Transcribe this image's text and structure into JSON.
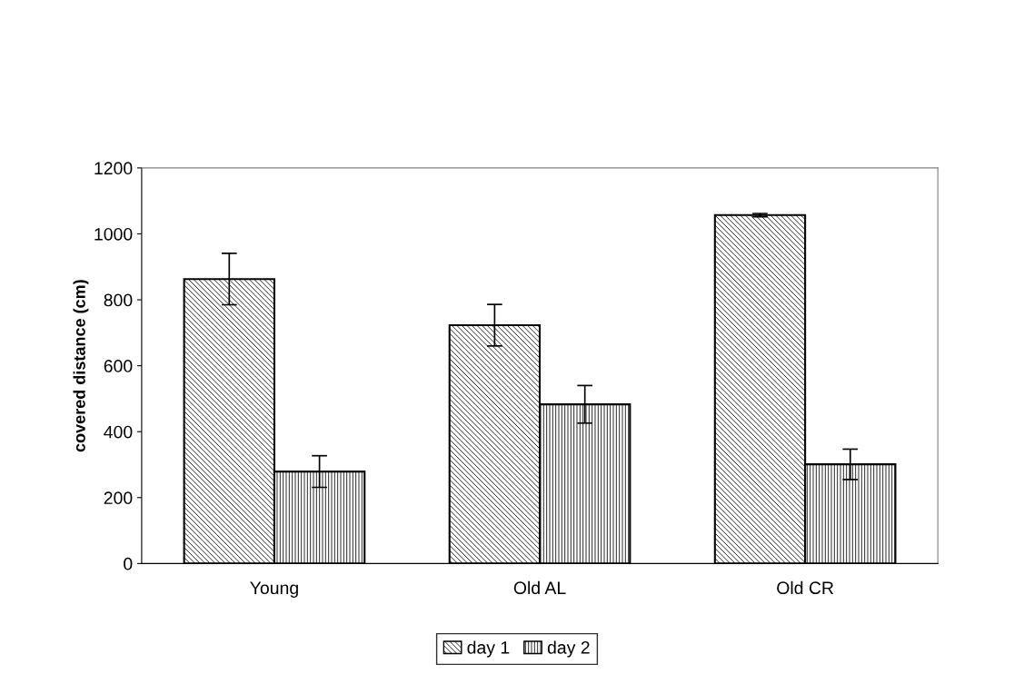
{
  "chart_data": {
    "type": "bar",
    "ylabel": "covered distance (cm)",
    "categories": [
      "Young",
      "Old AL",
      "Old CR"
    ],
    "series": [
      {
        "name": "day 1",
        "color": "#000000",
        "values": [
          863,
          723,
          1057
        ],
        "errors": [
          78,
          63,
          5
        ]
      },
      {
        "name": "day 2",
        "color": "#000000",
        "values": [
          279,
          483,
          301
        ],
        "errors": [
          48,
          57,
          46
        ]
      }
    ],
    "ylim": [
      0,
      1200
    ],
    "yticks": [
      0,
      200,
      400,
      600,
      800,
      1000,
      1200
    ],
    "grid": false,
    "legend": "bottom"
  }
}
